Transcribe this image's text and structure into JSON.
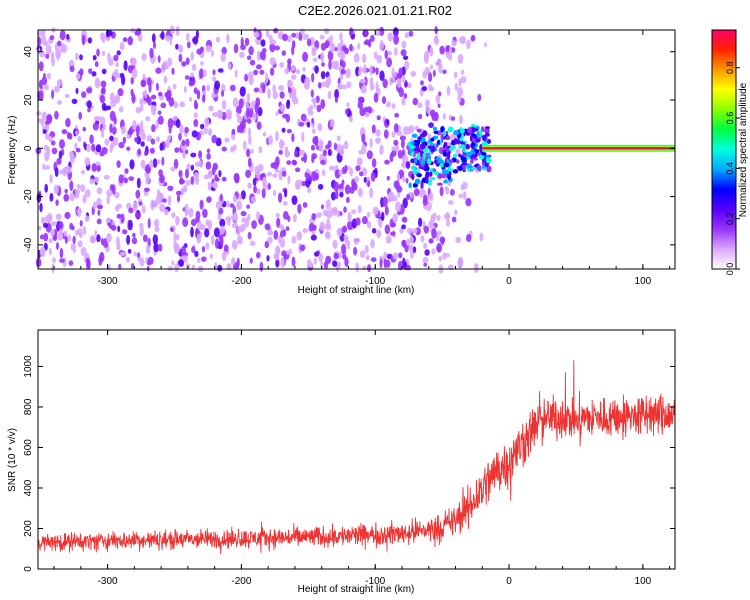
{
  "title": "C2E2.2026.021.01.21.R02",
  "chart_data": [
    {
      "type": "heatmap",
      "xlabel": "Height of straight line (km)",
      "ylabel": "Frequency (Hz)",
      "xlim": [
        -352,
        124
      ],
      "ylim": [
        -50,
        49
      ],
      "xticks": [
        -300,
        -200,
        -100,
        0,
        100
      ],
      "xtick_labels": [
        "-300",
        "-200",
        "-100",
        "0",
        "100"
      ],
      "yticks": [
        -40,
        -20,
        0,
        20,
        40
      ],
      "ytick_labels": [
        "-40",
        "-20",
        "0",
        "20",
        "40"
      ],
      "grid": false,
      "noise_region_x": [
        -352,
        -55
      ],
      "signal_line": {
        "x_start": -20,
        "x_end": 124,
        "frequency": 0,
        "amplitude": 0.95
      },
      "colorbar": {
        "label": "Normalized spectral amplitude",
        "range": [
          0,
          0.95
        ],
        "ticks": [
          0.0,
          0.2,
          0.4,
          0.6,
          0.8
        ],
        "tick_labels": [
          "0.0",
          "0.2",
          "0.4",
          "0.6",
          "0.8"
        ],
        "colors": [
          "#ffffff",
          "#d9a8ff",
          "#9933ff",
          "#5500ff",
          "#0000ff",
          "#00aaff",
          "#00ffdd",
          "#00ff44",
          "#88ff00",
          "#ffff00",
          "#ff9900",
          "#ff2200",
          "#ff0066"
        ]
      }
    },
    {
      "type": "line",
      "xlabel": "Height of straight line (km)",
      "ylabel": "SNR (10 * v/v)",
      "xlim": [
        -352,
        124
      ],
      "ylim": [
        0,
        1180
      ],
      "xticks": [
        -300,
        -200,
        -100,
        0,
        100
      ],
      "xtick_labels": [
        "-300",
        "-200",
        "-100",
        "0",
        "100"
      ],
      "yticks": [
        0,
        200,
        400,
        600,
        800,
        1000
      ],
      "ytick_labels": [
        "0",
        "200",
        "400",
        "600",
        "800",
        "1000"
      ],
      "grid": false,
      "series": [
        {
          "color": "#ee3333",
          "x": [
            -350,
            -300,
            -250,
            -200,
            -150,
            -100,
            -75,
            -50,
            -40,
            -30,
            -20,
            -10,
            0,
            10,
            20,
            30,
            50,
            75,
            100,
            124
          ],
          "y": [
            130,
            140,
            145,
            150,
            158,
            168,
            180,
            205,
            240,
            300,
            400,
            480,
            530,
            620,
            710,
            750,
            740,
            750,
            760,
            760
          ],
          "spread": [
            65,
            65,
            70,
            70,
            75,
            80,
            85,
            100,
            120,
            150,
            170,
            180,
            180,
            180,
            160,
            150,
            150,
            150,
            150,
            150
          ]
        }
      ]
    }
  ]
}
